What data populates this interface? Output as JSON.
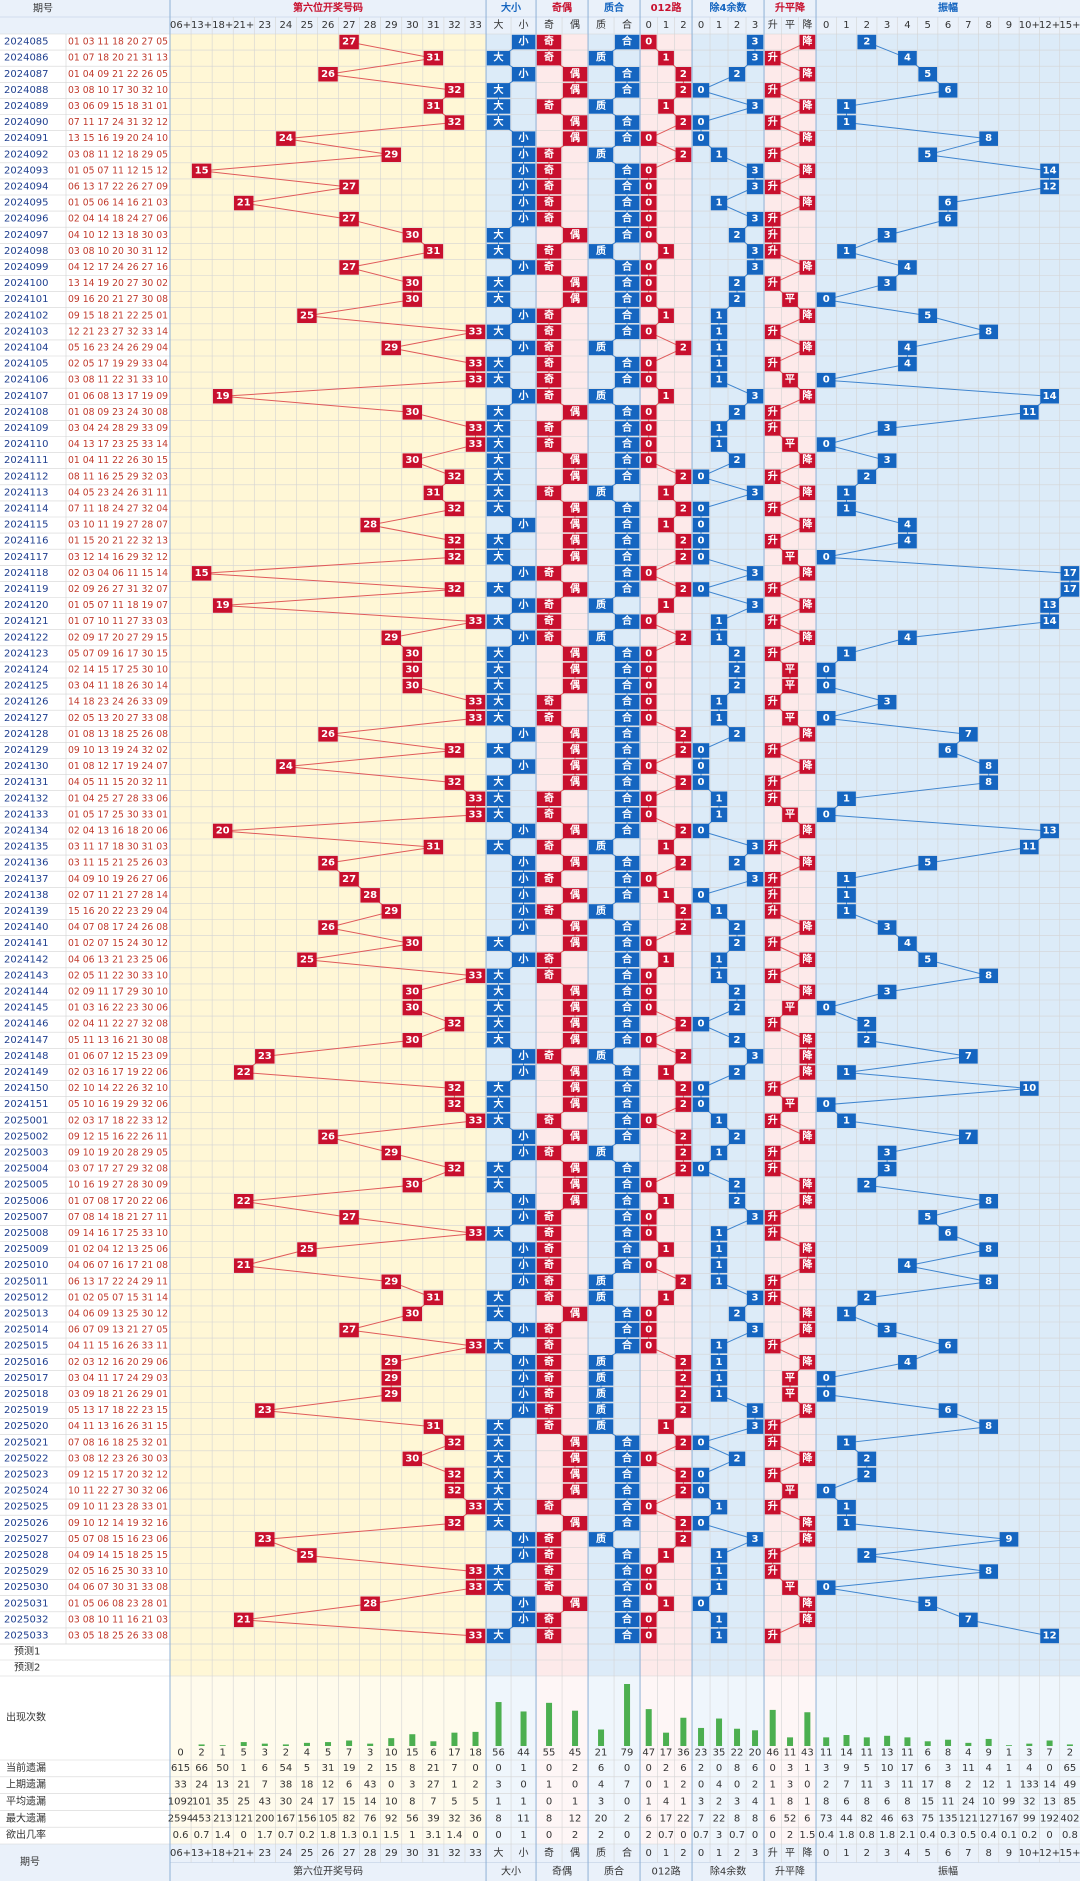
{
  "header": {
    "issue_label": "期号",
    "groups": [
      "第六位开奖号码",
      "大小",
      "奇偶",
      "质合",
      "012路",
      "除4余数",
      "升平降",
      "振幅"
    ]
  },
  "columns": [
    [
      "06+",
      "13+",
      "18+",
      "21+",
      "23",
      "24",
      "25",
      "26",
      "27",
      "28",
      "29",
      "30",
      "31",
      "32",
      "33"
    ],
    [
      "大",
      "小"
    ],
    [
      "奇",
      "偶"
    ],
    [
      "质",
      "合"
    ],
    [
      "0",
      "1",
      "2"
    ],
    [
      "0",
      "1",
      "2",
      "3"
    ],
    [
      "升",
      "平",
      "降"
    ],
    [
      "0",
      "1",
      "2",
      "3",
      "4",
      "5",
      "6",
      "7",
      "8",
      "9",
      "10+",
      "12+",
      "15+"
    ]
  ],
  "rows": [
    [
      "2024085",
      "01 03 11 18 20 27 05",
      27,
      "小",
      "奇",
      "合",
      0,
      3,
      "降",
      2
    ],
    [
      "2024086",
      "01 07 18 20 21 31 13",
      31,
      "大",
      "奇",
      "质",
      1,
      3,
      "升",
      4
    ],
    [
      "2024087",
      "01 04 09 21 22 26 05",
      26,
      "小",
      "偶",
      "合",
      2,
      2,
      "降",
      5
    ],
    [
      "2024088",
      "03 08 10 17 30 32 10",
      32,
      "大",
      "偶",
      "合",
      2,
      0,
      "升",
      6
    ],
    [
      "2024089",
      "03 06 09 15 18 31 01",
      31,
      "大",
      "奇",
      "质",
      1,
      3,
      "降",
      1
    ],
    [
      "2024090",
      "07 11 17 24 31 32 12",
      32,
      "大",
      "偶",
      "合",
      2,
      0,
      "升",
      1
    ],
    [
      "2024091",
      "13 15 16 19 20 24 10",
      24,
      "小",
      "偶",
      "合",
      0,
      0,
      "降",
      8
    ],
    [
      "2024092",
      "03 08 11 12 18 29 05",
      29,
      "小",
      "奇",
      "质",
      2,
      1,
      "升",
      5
    ],
    [
      "2024093",
      "01 05 07 11 12 15 12",
      15,
      "小",
      "奇",
      "合",
      0,
      3,
      "降",
      14
    ],
    [
      "2024094",
      "06 13 17 22 26 27 09",
      27,
      "小",
      "奇",
      "合",
      0,
      3,
      "升",
      12
    ],
    [
      "2024095",
      "01 05 06 14 16 21 03",
      21,
      "小",
      "奇",
      "合",
      0,
      1,
      "降",
      6
    ],
    [
      "2024096",
      "02 04 14 18 24 27 06",
      27,
      "小",
      "奇",
      "合",
      0,
      3,
      "升",
      6
    ],
    [
      "2024097",
      "04 10 12 13 18 30 03",
      30,
      "大",
      "偶",
      "合",
      0,
      2,
      "升",
      3
    ],
    [
      "2024098",
      "03 08 10 20 30 31 12",
      31,
      "大",
      "奇",
      "质",
      1,
      3,
      "升",
      1
    ],
    [
      "2024099",
      "04 12 17 24 26 27 16",
      27,
      "小",
      "奇",
      "合",
      0,
      3,
      "降",
      4
    ],
    [
      "2024100",
      "13 14 19 20 27 30 02",
      30,
      "大",
      "偶",
      "合",
      0,
      2,
      "升",
      3
    ],
    [
      "2024101",
      "09 16 20 21 27 30 08",
      30,
      "大",
      "偶",
      "合",
      0,
      2,
      "平",
      0
    ],
    [
      "2024102",
      "09 15 18 21 22 25 01",
      25,
      "小",
      "奇",
      "合",
      1,
      1,
      "降",
      5
    ],
    [
      "2024103",
      "12 21 23 27 32 33 14",
      33,
      "大",
      "奇",
      "合",
      0,
      1,
      "升",
      8
    ],
    [
      "2024104",
      "05 16 23 24 26 29 04",
      29,
      "小",
      "奇",
      "质",
      2,
      1,
      "降",
      4
    ],
    [
      "2024105",
      "02 05 17 19 29 33 04",
      33,
      "大",
      "奇",
      "合",
      0,
      1,
      "升",
      4
    ],
    [
      "2024106",
      "03 08 11 22 31 33 10",
      33,
      "大",
      "奇",
      "合",
      0,
      1,
      "平",
      0
    ],
    [
      "2024107",
      "01 06 08 13 17 19 09",
      19,
      "小",
      "奇",
      "质",
      1,
      3,
      "降",
      14
    ],
    [
      "2024108",
      "01 08 09 23 24 30 08",
      30,
      "大",
      "偶",
      "合",
      0,
      2,
      "升",
      11
    ],
    [
      "2024109",
      "03 04 24 28 29 33 09",
      33,
      "大",
      "奇",
      "合",
      0,
      1,
      "升",
      3
    ],
    [
      "2024110",
      "04 13 17 23 25 33 14",
      33,
      "大",
      "奇",
      "合",
      0,
      1,
      "平",
      0
    ],
    [
      "2024111",
      "01 04 11 22 26 30 15",
      30,
      "大",
      "偶",
      "合",
      0,
      2,
      "降",
      3
    ],
    [
      "2024112",
      "08 11 16 25 29 32 03",
      32,
      "大",
      "偶",
      "合",
      2,
      0,
      "升",
      2
    ],
    [
      "2024113",
      "04 05 23 24 26 31 11",
      31,
      "大",
      "奇",
      "质",
      1,
      3,
      "降",
      1
    ],
    [
      "2024114",
      "07 11 18 24 27 32 04",
      32,
      "大",
      "偶",
      "合",
      2,
      0,
      "升",
      1
    ],
    [
      "2024115",
      "03 10 11 19 27 28 07",
      28,
      "小",
      "偶",
      "合",
      1,
      0,
      "降",
      4
    ],
    [
      "2024116",
      "01 15 20 21 22 32 13",
      32,
      "大",
      "偶",
      "合",
      2,
      0,
      "升",
      4
    ],
    [
      "2024117",
      "03 12 14 16 29 32 12",
      32,
      "大",
      "偶",
      "合",
      2,
      0,
      "平",
      0
    ],
    [
      "2024118",
      "02 03 04 06 11 15 14",
      15,
      "小",
      "奇",
      "合",
      0,
      3,
      "降",
      17
    ],
    [
      "2024119",
      "02 09 26 27 31 32 07",
      32,
      "大",
      "偶",
      "合",
      2,
      0,
      "升",
      17
    ],
    [
      "2024120",
      "01 05 07 11 18 19 07",
      19,
      "小",
      "奇",
      "质",
      1,
      3,
      "降",
      13
    ],
    [
      "2024121",
      "01 07 10 11 27 33 03",
      33,
      "大",
      "奇",
      "合",
      0,
      1,
      "升",
      14
    ],
    [
      "2024122",
      "02 09 17 20 27 29 15",
      29,
      "小",
      "奇",
      "质",
      2,
      1,
      "降",
      4
    ],
    [
      "2024123",
      "05 07 09 16 17 30 15",
      30,
      "大",
      "偶",
      "合",
      0,
      2,
      "升",
      1
    ],
    [
      "2024124",
      "02 14 15 17 25 30 10",
      30,
      "大",
      "偶",
      "合",
      0,
      2,
      "平",
      0
    ],
    [
      "2024125",
      "03 04 11 18 26 30 14",
      30,
      "大",
      "偶",
      "合",
      0,
      2,
      "平",
      0
    ],
    [
      "2024126",
      "14 18 23 24 26 33 09",
      33,
      "大",
      "奇",
      "合",
      0,
      1,
      "升",
      3
    ],
    [
      "2024127",
      "02 05 13 20 27 33 08",
      33,
      "大",
      "奇",
      "合",
      0,
      1,
      "平",
      0
    ],
    [
      "2024128",
      "01 08 13 18 25 26 08",
      26,
      "小",
      "偶",
      "合",
      2,
      2,
      "降",
      7
    ],
    [
      "2024129",
      "09 10 13 19 24 32 02",
      32,
      "大",
      "偶",
      "合",
      2,
      0,
      "升",
      6
    ],
    [
      "2024130",
      "01 08 12 17 19 24 07",
      24,
      "小",
      "偶",
      "合",
      0,
      0,
      "降",
      8
    ],
    [
      "2024131",
      "04 05 11 15 20 32 11",
      32,
      "大",
      "偶",
      "合",
      2,
      0,
      "升",
      8
    ],
    [
      "2024132",
      "01 04 25 27 28 33 06",
      33,
      "大",
      "奇",
      "合",
      0,
      1,
      "升",
      1
    ],
    [
      "2024133",
      "01 05 17 25 30 33 01",
      33,
      "大",
      "奇",
      "合",
      0,
      1,
      "平",
      0
    ],
    [
      "2024134",
      "02 04 13 16 18 20 06",
      20,
      "小",
      "偶",
      "合",
      2,
      0,
      "降",
      13
    ],
    [
      "2024135",
      "03 11 17 18 30 31 03",
      31,
      "大",
      "奇",
      "质",
      1,
      3,
      "升",
      11
    ],
    [
      "2024136",
      "03 11 15 21 25 26 03",
      26,
      "小",
      "偶",
      "合",
      2,
      2,
      "降",
      5
    ],
    [
      "2024137",
      "04 09 10 19 26 27 06",
      27,
      "小",
      "奇",
      "合",
      0,
      3,
      "升",
      1
    ],
    [
      "2024138",
      "02 07 11 21 27 28 14",
      28,
      "小",
      "偶",
      "合",
      1,
      0,
      "升",
      1
    ],
    [
      "2024139",
      "15 16 20 22 23 29 04",
      29,
      "小",
      "奇",
      "质",
      2,
      1,
      "升",
      1
    ],
    [
      "2024140",
      "04 07 08 17 24 26 08",
      26,
      "小",
      "偶",
      "合",
      2,
      2,
      "降",
      3
    ],
    [
      "2024141",
      "01 02 07 15 24 30 12",
      30,
      "大",
      "偶",
      "合",
      0,
      2,
      "升",
      4
    ],
    [
      "2024142",
      "04 06 13 21 23 25 06",
      25,
      "小",
      "奇",
      "合",
      1,
      1,
      "降",
      5
    ],
    [
      "2024143",
      "02 05 11 22 30 33 10",
      33,
      "大",
      "奇",
      "合",
      0,
      1,
      "升",
      8
    ],
    [
      "2024144",
      "02 09 11 17 29 30 10",
      30,
      "大",
      "偶",
      "合",
      0,
      2,
      "降",
      3
    ],
    [
      "2024145",
      "01 03 16 22 23 30 06",
      30,
      "大",
      "偶",
      "合",
      0,
      2,
      "平",
      0
    ],
    [
      "2024146",
      "02 04 11 22 27 32 08",
      32,
      "大",
      "偶",
      "合",
      2,
      0,
      "升",
      2
    ],
    [
      "2024147",
      "05 11 13 16 21 30 08",
      30,
      "大",
      "偶",
      "合",
      0,
      2,
      "降",
      2
    ],
    [
      "2024148",
      "01 06 07 12 15 23 09",
      23,
      "小",
      "奇",
      "质",
      2,
      3,
      "降",
      7
    ],
    [
      "2024149",
      "02 03 16 17 19 22 06",
      22,
      "小",
      "偶",
      "合",
      1,
      2,
      "降",
      1
    ],
    [
      "2024150",
      "02 10 14 22 26 32 10",
      32,
      "大",
      "偶",
      "合",
      2,
      0,
      "升",
      10
    ],
    [
      "2024151",
      "05 10 16 19 29 32 06",
      32,
      "大",
      "偶",
      "合",
      2,
      0,
      "平",
      0
    ],
    [
      "2025001",
      "02 03 17 18 22 33 12",
      33,
      "大",
      "奇",
      "合",
      0,
      1,
      "升",
      1
    ],
    [
      "2025002",
      "09 12 15 16 22 26 11",
      26,
      "小",
      "偶",
      "合",
      2,
      2,
      "降",
      7
    ],
    [
      "2025003",
      "09 10 19 20 28 29 05",
      29,
      "小",
      "奇",
      "质",
      2,
      1,
      "升",
      3
    ],
    [
      "2025004",
      "03 07 17 27 29 32 08",
      32,
      "大",
      "偶",
      "合",
      2,
      0,
      "升",
      3
    ],
    [
      "2025005",
      "10 16 19 27 28 30 09",
      30,
      "大",
      "偶",
      "合",
      0,
      2,
      "降",
      2
    ],
    [
      "2025006",
      "01 07 08 17 20 22 06",
      22,
      "小",
      "偶",
      "合",
      1,
      2,
      "降",
      8
    ],
    [
      "2025007",
      "07 08 14 18 21 27 11",
      27,
      "小",
      "奇",
      "合",
      0,
      3,
      "升",
      5
    ],
    [
      "2025008",
      "09 14 16 17 25 33 10",
      33,
      "大",
      "奇",
      "合",
      0,
      1,
      "升",
      6
    ],
    [
      "2025009",
      "01 02 04 12 13 25 06",
      25,
      "小",
      "奇",
      "合",
      1,
      1,
      "降",
      8
    ],
    [
      "2025010",
      "04 06 07 16 17 21 08",
      21,
      "小",
      "奇",
      "合",
      0,
      1,
      "降",
      4
    ],
    [
      "2025011",
      "06 13 17 22 24 29 11",
      29,
      "小",
      "奇",
      "质",
      2,
      1,
      "升",
      8
    ],
    [
      "2025012",
      "01 02 05 07 15 31 14",
      31,
      "大",
      "奇",
      "质",
      1,
      3,
      "升",
      2
    ],
    [
      "2025013",
      "04 06 09 13 25 30 12",
      30,
      "大",
      "偶",
      "合",
      0,
      2,
      "降",
      1
    ],
    [
      "2025014",
      "06 07 09 13 21 27 05",
      27,
      "小",
      "奇",
      "合",
      0,
      3,
      "降",
      3
    ],
    [
      "2025015",
      "04 11 15 16 26 33 11",
      33,
      "大",
      "奇",
      "合",
      0,
      1,
      "升",
      6
    ],
    [
      "2025016",
      "02 03 12 16 20 29 06",
      29,
      "小",
      "奇",
      "质",
      2,
      1,
      "降",
      4
    ],
    [
      "2025017",
      "03 04 11 17 24 29 03",
      29,
      "小",
      "奇",
      "质",
      2,
      1,
      "平",
      0
    ],
    [
      "2025018",
      "03 09 18 21 26 29 01",
      29,
      "小",
      "奇",
      "质",
      2,
      1,
      "平",
      0
    ],
    [
      "2025019",
      "05 13 17 18 22 23 15",
      23,
      "小",
      "奇",
      "质",
      2,
      3,
      "降",
      6
    ],
    [
      "2025020",
      "04 11 13 16 26 31 15",
      31,
      "大",
      "奇",
      "质",
      1,
      3,
      "升",
      8
    ],
    [
      "2025021",
      "07 08 16 18 25 32 01",
      32,
      "大",
      "偶",
      "合",
      2,
      0,
      "升",
      1
    ],
    [
      "2025022",
      "03 08 12 23 26 30 03",
      30,
      "大",
      "偶",
      "合",
      0,
      2,
      "降",
      2
    ],
    [
      "2025023",
      "09 12 15 17 20 32 12",
      32,
      "大",
      "偶",
      "合",
      2,
      0,
      "升",
      2
    ],
    [
      "2025024",
      "10 11 22 27 30 32 06",
      32,
      "大",
      "偶",
      "合",
      2,
      0,
      "平",
      0
    ],
    [
      "2025025",
      "09 10 11 23 28 33 01",
      33,
      "大",
      "奇",
      "合",
      0,
      1,
      "升",
      1
    ],
    [
      "2025026",
      "09 10 12 14 19 32 16",
      32,
      "大",
      "偶",
      "合",
      2,
      0,
      "降",
      1
    ],
    [
      "2025027",
      "05 07 08 15 16 23 06",
      23,
      "小",
      "奇",
      "质",
      2,
      3,
      "降",
      9
    ],
    [
      "2025028",
      "04 09 14 15 18 25 15",
      25,
      "小",
      "奇",
      "合",
      1,
      1,
      "升",
      2
    ],
    [
      "2025029",
      "02 05 16 25 30 33 10",
      33,
      "大",
      "奇",
      "合",
      0,
      1,
      "升",
      8
    ],
    [
      "2025030",
      "04 06 07 30 31 33 08",
      33,
      "大",
      "奇",
      "合",
      0,
      1,
      "平",
      0
    ],
    [
      "2025031",
      "01 05 06 08 23 28 01",
      28,
      "小",
      "偶",
      "合",
      1,
      0,
      "降",
      5
    ],
    [
      "2025032",
      "03 08 10 11 16 21 03",
      21,
      "小",
      "奇",
      "合",
      0,
      1,
      "降",
      7
    ],
    [
      "2025033",
      "03 05 18 25 26 33 08",
      33,
      "大",
      "奇",
      "合",
      0,
      1,
      "升",
      12
    ]
  ],
  "forecast": [
    "预测1",
    "预测2"
  ],
  "stats": [
    {
      "label": "出现次数",
      "values": [
        0,
        2,
        1,
        5,
        3,
        2,
        4,
        5,
        7,
        3,
        10,
        15,
        6,
        17,
        18,
        56,
        44,
        55,
        45,
        21,
        79,
        47,
        17,
        36,
        23,
        35,
        22,
        20,
        46,
        11,
        43,
        11,
        14,
        11,
        13,
        11,
        6,
        8,
        4,
        9,
        1,
        3,
        7,
        2
      ]
    },
    {
      "label": "当前遗漏",
      "values": [
        615,
        66,
        50,
        1,
        6,
        54,
        5,
        31,
        19,
        2,
        15,
        8,
        21,
        7,
        0,
        0,
        1,
        0,
        2,
        6,
        0,
        0,
        2,
        6,
        2,
        0,
        8,
        6,
        0,
        3,
        1,
        3,
        9,
        5,
        10,
        17,
        6,
        3,
        11,
        4,
        1,
        4,
        0,
        65
      ]
    },
    {
      "label": "上期遗漏",
      "values": [
        33,
        24,
        13,
        21,
        7,
        38,
        18,
        12,
        6,
        43,
        0,
        3,
        27,
        1,
        2,
        3,
        0,
        1,
        0,
        4,
        7,
        0,
        1,
        2,
        0,
        4,
        0,
        2,
        1,
        3,
        0,
        2,
        7,
        11,
        3,
        11,
        17,
        8,
        2,
        12,
        1,
        133,
        14,
        49
      ]
    },
    {
      "label": "平均遗漏",
      "values": [
        1092,
        101,
        35,
        25,
        43,
        30,
        24,
        17,
        15,
        14,
        10,
        8,
        7,
        5,
        5,
        1,
        1,
        0,
        1,
        3,
        0,
        1,
        4,
        1,
        3,
        2,
        3,
        4,
        1,
        8,
        1,
        8,
        6,
        8,
        6,
        8,
        15,
        11,
        24,
        10,
        99,
        32,
        13,
        85
      ]
    },
    {
      "label": "最大遗漏",
      "values": [
        2594,
        453,
        213,
        121,
        200,
        167,
        156,
        105,
        82,
        76,
        92,
        56,
        39,
        32,
        36,
        8,
        11,
        8,
        12,
        20,
        2,
        6,
        17,
        22,
        7,
        22,
        8,
        8,
        6,
        52,
        6,
        73,
        44,
        82,
        46,
        63,
        75,
        135,
        121,
        127,
        167,
        99,
        192,
        402
      ]
    },
    {
      "label": "欲出几率",
      "values": [
        0.6,
        0.7,
        1.4,
        0,
        1.7,
        0.7,
        0.2,
        1.8,
        1.3,
        0.1,
        1.5,
        1,
        3.1,
        1.4,
        0,
        0,
        1,
        0,
        2,
        2,
        0,
        2,
        0.7,
        0,
        0.7,
        3,
        0.7,
        0,
        0,
        2,
        1.5,
        0.4,
        1.8,
        0.8,
        1.8,
        2.1,
        0.4,
        0.3,
        0.5,
        0.4,
        0.1,
        0.2,
        0,
        0.8
      ]
    }
  ]
}
